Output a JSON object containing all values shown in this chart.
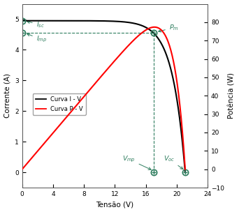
{
  "Isc": 4.95,
  "Imp": 4.55,
  "Vmp": 17.0,
  "Voc": 21.1,
  "Pm": 77.4,
  "xlim": [
    0,
    24
  ],
  "ylim_I": [
    -0.5,
    5.5
  ],
  "ylim_P": [
    -10,
    90
  ],
  "xlabel": "Tensão (V)",
  "ylabel_left": "Corrente (A)",
  "ylabel_right": "Potência (W)",
  "legend_IV": "Curva I - V",
  "legend_PV": "Curva P - V",
  "curve_color_IV": "black",
  "curve_color_PV": "red",
  "annotation_color": "#2e7d5e",
  "dashed_color": "#2e7d5e",
  "xticks": [
    0,
    4,
    8,
    12,
    16,
    20,
    24
  ],
  "yticks_I": [
    0,
    1,
    2,
    3,
    4,
    5
  ],
  "yticks_P": [
    -10,
    0,
    10,
    20,
    30,
    40,
    50,
    60,
    70,
    80
  ],
  "bg_color": "#ffffff"
}
